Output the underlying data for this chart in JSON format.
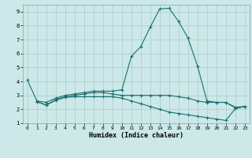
{
  "bg_color": "#cce8e8",
  "grid_color": "#aacccc",
  "line_color": "#1a7070",
  "line1": {
    "x": [
      0,
      1,
      2,
      3,
      4,
      5,
      6,
      7,
      8,
      9,
      10,
      11,
      12,
      13,
      14,
      15,
      16,
      17,
      18,
      19,
      20,
      21,
      22,
      23
    ],
    "y": [
      4.1,
      2.6,
      2.5,
      2.8,
      3.0,
      3.1,
      3.2,
      3.3,
      3.3,
      3.3,
      3.4,
      5.8,
      6.5,
      7.9,
      9.2,
      9.25,
      8.3,
      7.1,
      5.1,
      2.6,
      2.5,
      2.5,
      2.1,
      2.2
    ]
  },
  "line2": {
    "x": [
      1,
      2,
      3,
      4,
      5,
      6,
      7,
      8,
      9,
      10,
      11,
      12,
      13,
      14,
      15,
      16,
      17,
      18,
      19,
      20,
      21,
      22,
      23
    ],
    "y": [
      2.55,
      2.3,
      2.7,
      2.9,
      3.0,
      3.1,
      3.2,
      3.2,
      3.1,
      3.0,
      3.0,
      3.0,
      3.0,
      3.0,
      3.0,
      2.9,
      2.8,
      2.6,
      2.5,
      2.5,
      2.5,
      2.15,
      2.2
    ]
  },
  "line3": {
    "x": [
      1,
      2,
      3,
      4,
      5,
      6,
      7,
      8,
      9,
      10,
      11,
      12,
      13,
      14,
      15,
      16,
      17,
      18,
      19,
      20,
      21,
      22,
      23
    ],
    "y": [
      2.55,
      2.3,
      2.65,
      2.85,
      2.9,
      2.9,
      2.9,
      2.9,
      2.9,
      2.8,
      2.6,
      2.4,
      2.2,
      2.0,
      1.8,
      1.7,
      1.6,
      1.5,
      1.4,
      1.3,
      1.2,
      2.05,
      2.2
    ]
  },
  "xlim": [
    -0.5,
    23.5
  ],
  "ylim": [
    1,
    9.5
  ],
  "yticks": [
    1,
    2,
    3,
    4,
    5,
    6,
    7,
    8,
    9
  ],
  "xticks": [
    0,
    1,
    2,
    3,
    4,
    5,
    6,
    7,
    8,
    9,
    10,
    11,
    12,
    13,
    14,
    15,
    16,
    17,
    18,
    19,
    20,
    21,
    22,
    23
  ],
  "xlabel": "Humidex (Indice chaleur)"
}
